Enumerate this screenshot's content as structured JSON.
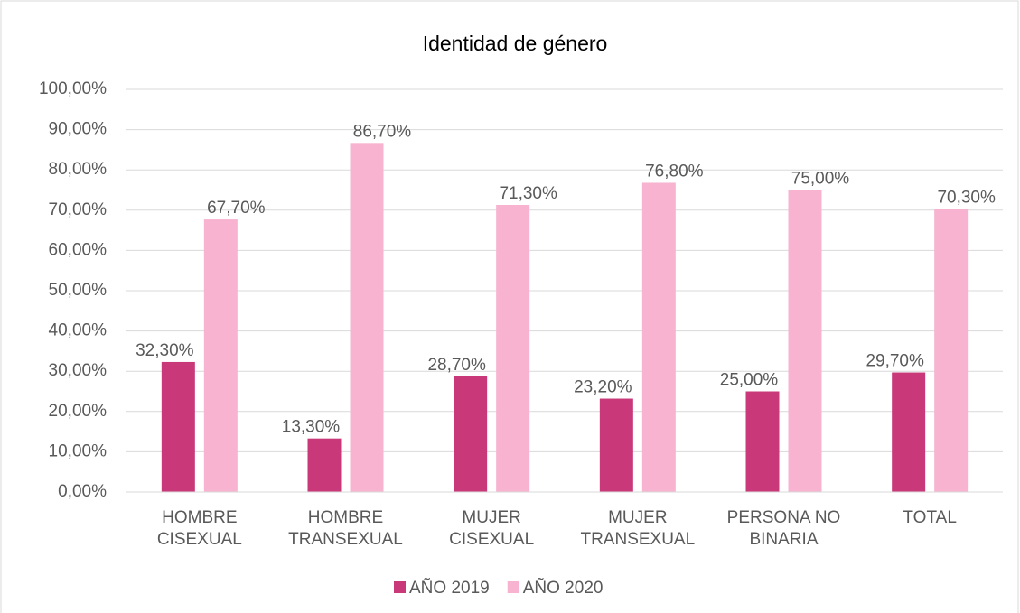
{
  "chart_data": {
    "type": "bar",
    "title": "Identidad de género",
    "categories": [
      "HOMBRE CISEXUAL",
      "HOMBRE TRANSEXUAL",
      "MUJER CISEXUAL",
      "MUJER TRANSEXUAL",
      "PERSONA NO BINARIA",
      "TOTAL"
    ],
    "series": [
      {
        "name": "AÑO 2019",
        "color": "#c9397a",
        "values": [
          32.3,
          13.3,
          28.7,
          23.2,
          25.0,
          29.7
        ],
        "value_labels": [
          "32,30%",
          "13,30%",
          "28,70%",
          "23,20%",
          "25,00%",
          "29,70%"
        ]
      },
      {
        "name": "AÑO 2020",
        "color": "#f7b3d0",
        "values": [
          67.7,
          86.7,
          71.3,
          76.8,
          75.0,
          70.3
        ],
        "value_labels": [
          "67,70%",
          "86,70%",
          "71,30%",
          "76,80%",
          "75,00%",
          "70,30%"
        ]
      }
    ],
    "ylim": [
      0,
      100
    ],
    "yticks": [
      {
        "value": 0,
        "label": "0,00%"
      },
      {
        "value": 10,
        "label": "10,00%"
      },
      {
        "value": 20,
        "label": "20,00%"
      },
      {
        "value": 30,
        "label": "30,00%"
      },
      {
        "value": 40,
        "label": "40,00%"
      },
      {
        "value": 50,
        "label": "50,00%"
      },
      {
        "value": 60,
        "label": "60,00%"
      },
      {
        "value": 70,
        "label": "70,00%"
      },
      {
        "value": 80,
        "label": "80,00%"
      },
      {
        "value": 90,
        "label": "90,00%"
      },
      {
        "value": 100,
        "label": "100,00%"
      }
    ],
    "grid": true,
    "legend": "bottom"
  }
}
